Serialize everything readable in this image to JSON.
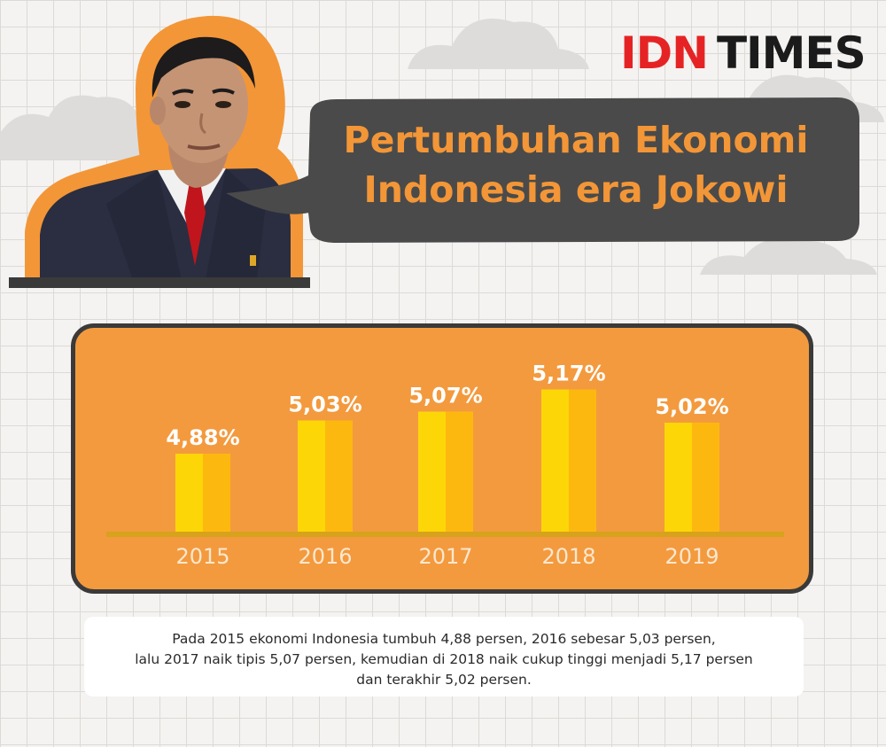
{
  "brand": {
    "idn": "IDN",
    "times": "TIMES",
    "colors": {
      "idn_red": "#e62324",
      "dark": "#1b1b1b"
    }
  },
  "portrait": {
    "icon": "person-portrait-icon"
  },
  "header": {
    "title_line1": "Pertumbuhan Ekonomi",
    "title_line2": "Indonesia era Jokowi"
  },
  "colors": {
    "accent_orange": "#f39637",
    "panel_orange": "#f39a3e",
    "bar_light": "#fdd607",
    "bar_dark": "#fdb810",
    "baseline": "#d7a21c",
    "bubble": "#4a4a4a"
  },
  "chart_data": {
    "type": "bar",
    "categories": [
      "2015",
      "2016",
      "2017",
      "2018",
      "2019"
    ],
    "values": [
      4.88,
      5.03,
      5.07,
      5.17,
      5.02
    ],
    "data_labels": [
      "4,88%",
      "5,03%",
      "5,07%",
      "5,17%",
      "5,02%"
    ],
    "title": "Pertumbuhan Ekonomi Indonesia era Jokowi",
    "xlabel": "",
    "ylabel": "",
    "ylim": [
      4.52,
      5.2
    ],
    "grid": false,
    "legend": "none"
  },
  "caption": {
    "line1": "Pada 2015 ekonomi Indonesia tumbuh 4,88 persen, 2016 sebesar 5,03 persen,",
    "line2": "lalu 2017 naik tipis 5,07 persen, kemudian di 2018 naik cukup tinggi menjadi 5,17 persen",
    "line3": "dan terakhir 5,02 persen."
  }
}
